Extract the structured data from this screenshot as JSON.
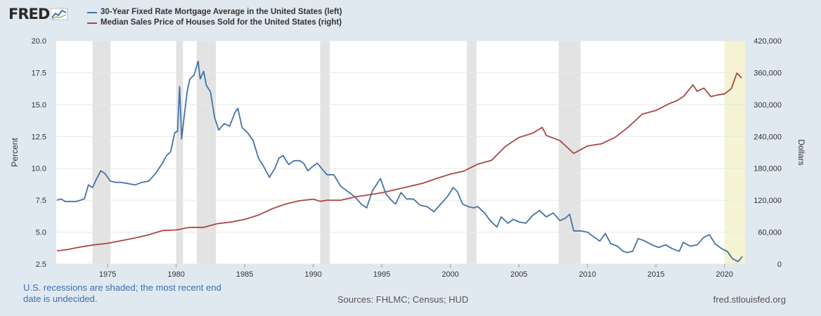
{
  "branding": {
    "logo_text": "FRED"
  },
  "legend": {
    "items": [
      {
        "label": "30-Year Fixed Rate Mortgage Average in the United States (left)",
        "color": "#4572a7"
      },
      {
        "label": "Median Sales Price of Houses Sold for the United States (right)",
        "color": "#aa4643"
      }
    ]
  },
  "footer": {
    "note": "U.S. recessions are shaded; the most recent end date is undecided.",
    "sources": "Sources: FHLMC; Census; HUD",
    "site": "fred.stlouisfed.org"
  },
  "chart_data": {
    "type": "line",
    "x_range": [
      1971.25,
      2021.5
    ],
    "x_ticks": [
      1975,
      1980,
      1985,
      1990,
      1995,
      2000,
      2005,
      2010,
      2015,
      2020
    ],
    "y_left": {
      "label": "Percent",
      "range": [
        2.5,
        20
      ],
      "ticks": [
        2.5,
        5.0,
        7.5,
        10.0,
        12.5,
        15.0,
        17.5,
        20.0
      ],
      "tick_labels": [
        "2.5",
        "5.0",
        "7.5",
        "10.0",
        "12.5",
        "15.0",
        "17.5",
        "20.0"
      ]
    },
    "y_right": {
      "label": "Dollars",
      "range": [
        0,
        420000
      ],
      "ticks": [
        0,
        60000,
        120000,
        180000,
        240000,
        300000,
        360000,
        420000
      ],
      "tick_labels": [
        "0",
        "60,000",
        "120,000",
        "180,000",
        "240,000",
        "300,000",
        "360,000",
        "420,000"
      ]
    },
    "recessions": [
      {
        "start": 1973.9,
        "end": 1975.2
      },
      {
        "start": 1980.0,
        "end": 1980.5
      },
      {
        "start": 1981.5,
        "end": 1982.9
      },
      {
        "start": 1990.5,
        "end": 1991.2
      },
      {
        "start": 2001.2,
        "end": 2001.9
      },
      {
        "start": 2007.9,
        "end": 2009.5
      }
    ],
    "recession_open": {
      "start": 2020.0,
      "end": 2021.5
    },
    "series": [
      {
        "name": "30-Year Fixed Rate Mortgage Average in the United States (left)",
        "axis": "left",
        "color": "#4572a7",
        "x": [
          1971.3,
          1971.6,
          1971.9,
          1972.3,
          1972.7,
          1973.0,
          1973.3,
          1973.6,
          1973.9,
          1974.2,
          1974.5,
          1974.8,
          1975.2,
          1975.6,
          1976.0,
          1976.5,
          1977.0,
          1977.5,
          1978.0,
          1978.5,
          1979.0,
          1979.3,
          1979.6,
          1979.9,
          1980.1,
          1980.25,
          1980.4,
          1980.6,
          1980.8,
          1981.0,
          1981.3,
          1981.6,
          1981.75,
          1982.0,
          1982.2,
          1982.5,
          1982.8,
          1983.1,
          1983.5,
          1983.9,
          1984.3,
          1984.5,
          1984.8,
          1985.2,
          1985.6,
          1986.0,
          1986.4,
          1986.8,
          1987.2,
          1987.5,
          1987.8,
          1988.2,
          1988.6,
          1989.0,
          1989.3,
          1989.6,
          1990.0,
          1990.3,
          1990.6,
          1991.0,
          1991.5,
          1992.0,
          1992.5,
          1993.0,
          1993.5,
          1993.9,
          1994.3,
          1994.6,
          1994.9,
          1995.3,
          1995.7,
          1996.0,
          1996.4,
          1996.8,
          1997.3,
          1997.8,
          1998.3,
          1998.8,
          1999.3,
          1999.8,
          2000.2,
          2000.5,
          2000.9,
          2001.3,
          2001.7,
          2002.0,
          2002.5,
          2002.9,
          2003.4,
          2003.7,
          2004.2,
          2004.6,
          2005.0,
          2005.5,
          2006.0,
          2006.5,
          2007.0,
          2007.5,
          2008.0,
          2008.4,
          2008.7,
          2009.0,
          2009.5,
          2010.0,
          2010.5,
          2010.9,
          2011.3,
          2011.7,
          2012.2,
          2012.6,
          2012.9,
          2013.3,
          2013.7,
          2014.2,
          2014.7,
          2015.2,
          2015.7,
          2016.2,
          2016.7,
          2017.0,
          2017.5,
          2018.0,
          2018.5,
          2018.9,
          2019.3,
          2019.8,
          2020.2,
          2020.6,
          2021.0,
          2021.3
        ],
        "values": [
          7.5,
          7.6,
          7.4,
          7.4,
          7.4,
          7.5,
          7.6,
          8.7,
          8.5,
          9.2,
          9.8,
          9.6,
          9.0,
          8.9,
          8.9,
          8.8,
          8.7,
          8.9,
          9.0,
          9.6,
          10.4,
          11.0,
          11.3,
          12.8,
          12.9,
          16.4,
          12.3,
          14.2,
          16.0,
          17.0,
          17.3,
          18.4,
          17.0,
          17.6,
          16.5,
          16.0,
          14.0,
          13.0,
          13.5,
          13.3,
          14.4,
          14.7,
          13.2,
          12.8,
          12.2,
          10.8,
          10.1,
          9.3,
          10.0,
          10.8,
          11.0,
          10.3,
          10.6,
          10.6,
          10.4,
          9.8,
          10.2,
          10.4,
          10.0,
          9.5,
          9.5,
          8.6,
          8.2,
          7.8,
          7.2,
          6.9,
          8.2,
          8.7,
          9.2,
          8.0,
          7.5,
          7.2,
          8.1,
          7.6,
          7.6,
          7.1,
          7.0,
          6.6,
          7.2,
          7.8,
          8.5,
          8.2,
          7.2,
          7.0,
          6.9,
          7.0,
          6.5,
          5.9,
          5.4,
          6.2,
          5.7,
          6.0,
          5.8,
          5.7,
          6.3,
          6.7,
          6.2,
          6.5,
          5.9,
          6.1,
          6.4,
          5.1,
          5.1,
          5.0,
          4.6,
          4.3,
          4.9,
          4.1,
          3.9,
          3.5,
          3.4,
          3.5,
          4.5,
          4.3,
          4.0,
          3.8,
          4.0,
          3.7,
          3.5,
          4.2,
          3.9,
          4.0,
          4.6,
          4.8,
          4.1,
          3.7,
          3.5,
          2.9,
          2.7,
          3.1
        ]
      },
      {
        "name": "Median Sales Price of Houses Sold for the United States (right)",
        "axis": "right",
        "color": "#aa4643",
        "x": [
          1971.3,
          1972.0,
          1973.0,
          1974.0,
          1975.0,
          1976.0,
          1977.0,
          1978.0,
          1979.0,
          1980.0,
          1981.0,
          1982.0,
          1983.0,
          1984.0,
          1985.0,
          1986.0,
          1987.0,
          1988.0,
          1989.0,
          1990.0,
          1990.5,
          1991.0,
          1992.0,
          1993.0,
          1994.0,
          1995.0,
          1996.0,
          1997.0,
          1998.0,
          1999.0,
          2000.0,
          2001.0,
          2002.0,
          2003.0,
          2004.0,
          2005.0,
          2006.0,
          2006.7,
          2007.0,
          2008.0,
          2008.5,
          2009.0,
          2009.5,
          2010.0,
          2011.0,
          2012.0,
          2013.0,
          2014.0,
          2015.0,
          2016.0,
          2016.5,
          2017.0,
          2017.7,
          2018.0,
          2018.5,
          2019.0,
          2019.5,
          2020.0,
          2020.5,
          2020.9,
          2021.25
        ],
        "values": [
          25000,
          27000,
          32000,
          36000,
          39000,
          44000,
          49000,
          55000,
          63000,
          64000,
          69000,
          69000,
          76000,
          79000,
          84000,
          92000,
          104000,
          113000,
          119000,
          122000,
          118000,
          120000,
          120000,
          126000,
          130000,
          134000,
          140000,
          146000,
          152000,
          161000,
          169000,
          175000,
          188000,
          195000,
          221000,
          238000,
          246000,
          257000,
          242000,
          232000,
          220000,
          208000,
          215000,
          222000,
          226000,
          238000,
          258000,
          282000,
          289000,
          302000,
          307000,
          315000,
          337000,
          325000,
          331000,
          315000,
          318000,
          320000,
          330000,
          359000,
          350000
        ]
      }
    ]
  }
}
